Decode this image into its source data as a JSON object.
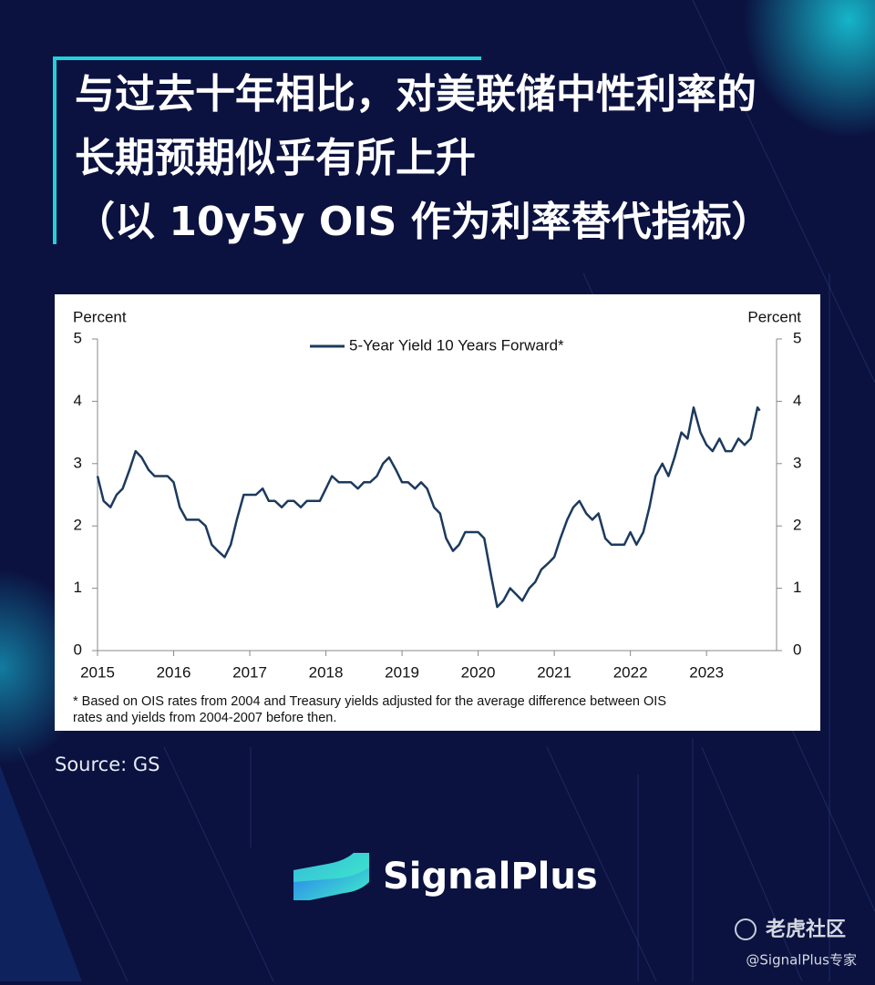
{
  "header": {
    "title_lines": [
      "与过去十年相比，对美联储中性利率的",
      "长期预期似乎有所上升",
      "（以 10y5y OIS 作为利率替代指标）"
    ]
  },
  "chart_data": {
    "type": "line",
    "y_label": "Percent",
    "y2_label": "Percent",
    "legend": "top",
    "xlim": [
      2015,
      2023.92
    ],
    "xticks": [
      2015,
      2016,
      2017,
      2018,
      2019,
      2020,
      2021,
      2022,
      2023
    ],
    "ylim": [
      0,
      5
    ],
    "yticks": [
      0,
      1,
      2,
      3,
      4,
      5
    ],
    "y2lim": [
      0,
      5
    ],
    "y2ticks": [
      0,
      1,
      2,
      3,
      4,
      5
    ],
    "x": [
      2015.0,
      2015.08,
      2015.17,
      2015.25,
      2015.33,
      2015.42,
      2015.5,
      2015.58,
      2015.67,
      2015.75,
      2015.83,
      2015.92,
      2016.0,
      2016.08,
      2016.17,
      2016.25,
      2016.33,
      2016.42,
      2016.5,
      2016.58,
      2016.67,
      2016.75,
      2016.83,
      2016.92,
      2017.0,
      2017.08,
      2017.17,
      2017.25,
      2017.33,
      2017.42,
      2017.5,
      2017.58,
      2017.67,
      2017.75,
      2017.83,
      2017.92,
      2018.0,
      2018.08,
      2018.17,
      2018.25,
      2018.33,
      2018.42,
      2018.5,
      2018.58,
      2018.67,
      2018.75,
      2018.83,
      2018.92,
      2019.0,
      2019.08,
      2019.17,
      2019.25,
      2019.33,
      2019.42,
      2019.5,
      2019.58,
      2019.67,
      2019.75,
      2019.83,
      2019.92,
      2020.0,
      2020.08,
      2020.17,
      2020.25,
      2020.33,
      2020.42,
      2020.5,
      2020.58,
      2020.67,
      2020.75,
      2020.83,
      2020.92,
      2021.0,
      2021.08,
      2021.17,
      2021.25,
      2021.33,
      2021.42,
      2021.5,
      2021.58,
      2021.67,
      2021.75,
      2021.83,
      2021.92,
      2022.0,
      2022.08,
      2022.17,
      2022.25,
      2022.33,
      2022.42,
      2022.5,
      2022.58,
      2022.67,
      2022.75,
      2022.83,
      2022.92,
      2023.0,
      2023.08,
      2023.17,
      2023.25,
      2023.33,
      2023.42,
      2023.5,
      2023.58,
      2023.67,
      2023.7
    ],
    "series": [
      {
        "name": "5-Year Yield 10 Years Forward*",
        "color": "#1c3a5e",
        "values": [
          2.8,
          2.4,
          2.3,
          2.5,
          2.6,
          2.9,
          3.2,
          3.1,
          2.9,
          2.8,
          2.8,
          2.8,
          2.7,
          2.3,
          2.1,
          2.1,
          2.1,
          2.0,
          1.7,
          1.6,
          1.5,
          1.7,
          2.1,
          2.5,
          2.5,
          2.5,
          2.6,
          2.4,
          2.4,
          2.3,
          2.4,
          2.4,
          2.3,
          2.4,
          2.4,
          2.4,
          2.6,
          2.8,
          2.7,
          2.7,
          2.7,
          2.6,
          2.7,
          2.7,
          2.8,
          3.0,
          3.1,
          2.9,
          2.7,
          2.7,
          2.6,
          2.7,
          2.6,
          2.3,
          2.2,
          1.8,
          1.6,
          1.7,
          1.9,
          1.9,
          1.9,
          1.8,
          1.2,
          0.7,
          0.8,
          1.0,
          0.9,
          0.8,
          1.0,
          1.1,
          1.3,
          1.4,
          1.5,
          1.8,
          2.1,
          2.3,
          2.4,
          2.2,
          2.1,
          2.2,
          1.8,
          1.7,
          1.7,
          1.7,
          1.9,
          1.7,
          1.9,
          2.3,
          2.8,
          3.0,
          2.8,
          3.1,
          3.5,
          3.4,
          3.9,
          3.5,
          3.3,
          3.2,
          3.4,
          3.2,
          3.2,
          3.4,
          3.3,
          3.4,
          3.9,
          3.85
        ]
      }
    ],
    "footnote": [
      "* Based on OIS rates from 2004 and Treasury yields adjusted for the average difference between OIS",
      "rates and yields from 2004-2007 before then."
    ]
  },
  "source": "Source: GS",
  "brand": "SignalPlus",
  "watermark": {
    "site": "老虎社区",
    "handle": "@SignalPlus专家"
  }
}
